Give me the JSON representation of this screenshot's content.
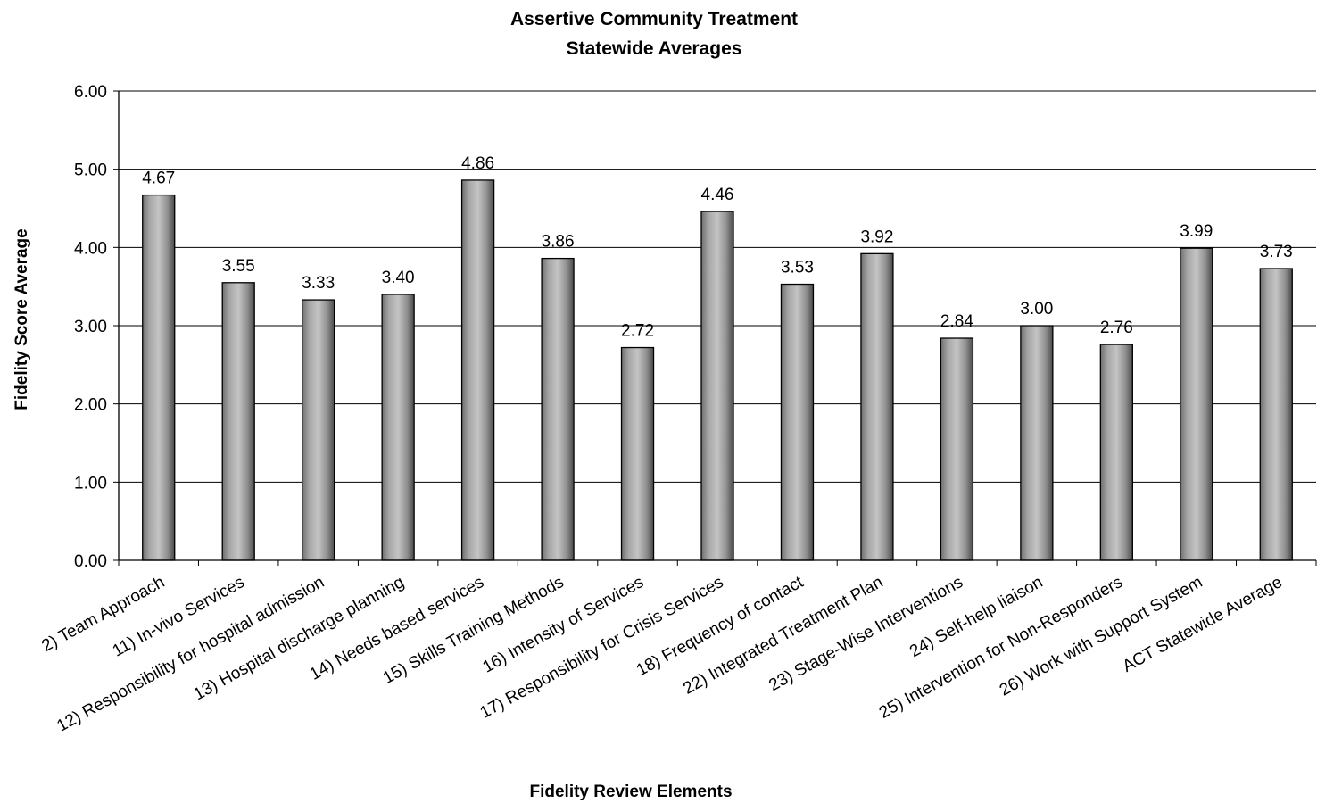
{
  "chart_data": {
    "type": "bar",
    "title": "Assertive Community Treatment",
    "subtitle": "Statewide Averages",
    "xlabel": "Fidelity Review Elements",
    "ylabel": "Fidelity Score Average",
    "ylim": [
      0,
      6
    ],
    "y_ticks": [
      "0.00",
      "1.00",
      "2.00",
      "3.00",
      "4.00",
      "5.00",
      "6.00"
    ],
    "grid": true,
    "bar_color": "#9a9a9a",
    "categories": [
      "2) Team Approach",
      "11) In-vivo Services",
      "12) Responsibility for hospital admission",
      "13) Hospital discharge planning",
      "14) Needs based services",
      "15) Skills Training Methods",
      "16) Intensity of Services",
      "17) Responsibility for Crisis Services",
      "18) Frequency of contact",
      "22) Integrated Treatment Plan",
      "23) Stage-Wise Interventions",
      "24) Self-help liaison",
      "25) Intervention for Non-Responders",
      "26) Work with Support System",
      "ACT Statewide Average"
    ],
    "values": [
      4.67,
      3.55,
      3.33,
      3.4,
      4.86,
      3.86,
      2.72,
      4.46,
      3.53,
      3.92,
      2.84,
      3.0,
      2.76,
      3.99,
      3.73
    ],
    "value_labels": [
      "4.67",
      "3.55",
      "3.33",
      "3.40",
      "4.86",
      "3.86",
      "2.72",
      "4.46",
      "3.53",
      "3.92",
      "2.84",
      "3.00",
      "2.76",
      "3.99",
      "3.73"
    ]
  }
}
